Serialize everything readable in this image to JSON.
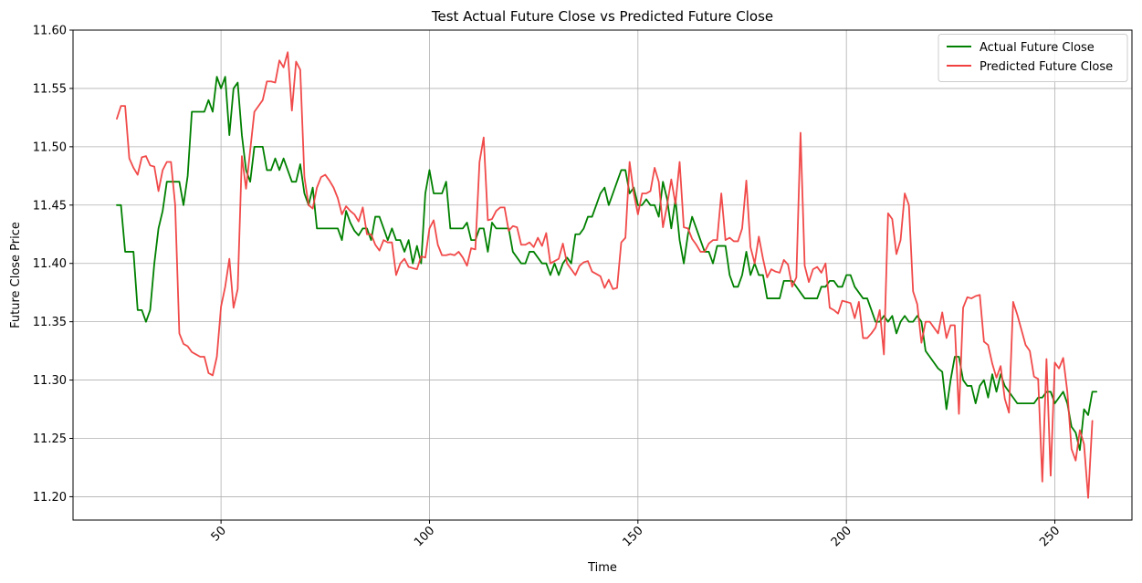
{
  "chart_data": {
    "type": "line",
    "title": "Test Actual Future Close vs Predicted Future Close",
    "xlabel": "Time",
    "ylabel": "Future Close Price",
    "xlim": [
      14.5,
      268.5
    ],
    "ylim": [
      11.18,
      11.6
    ],
    "x_ticks": [
      50,
      100,
      150,
      200,
      250
    ],
    "y_ticks": [
      11.2,
      11.25,
      11.3,
      11.35,
      11.4,
      11.45,
      11.5,
      11.55,
      11.6
    ],
    "x_tick_labels": [
      "50",
      "100",
      "150",
      "200",
      "250"
    ],
    "y_tick_labels": [
      "11.20",
      "11.25",
      "11.30",
      "11.35",
      "11.40",
      "11.45",
      "11.50",
      "11.55",
      "11.60"
    ],
    "grid": true,
    "legend_position": "top-right",
    "series": [
      {
        "name": "Actual Future Close",
        "color": "#008000",
        "x_start": 25,
        "values": [
          11.45,
          11.45,
          11.41,
          11.41,
          11.41,
          11.36,
          11.36,
          11.35,
          11.36,
          11.4,
          11.43,
          11.445,
          11.47,
          11.47,
          11.47,
          11.47,
          11.45,
          11.475,
          11.53,
          11.53,
          11.53,
          11.53,
          11.54,
          11.53,
          11.56,
          11.55,
          11.56,
          11.51,
          11.55,
          11.555,
          11.51,
          11.48,
          11.47,
          11.5,
          11.5,
          11.5,
          11.48,
          11.48,
          11.49,
          11.48,
          11.49,
          11.48,
          11.47,
          11.47,
          11.485,
          11.46,
          11.45,
          11.465,
          11.43,
          11.43,
          11.43,
          11.43,
          11.43,
          11.43,
          11.42,
          11.445,
          11.435,
          11.428,
          11.424,
          11.43,
          11.43,
          11.42,
          11.44,
          11.44,
          11.43,
          11.42,
          11.43,
          11.42,
          11.42,
          11.41,
          11.42,
          11.4,
          11.415,
          11.4,
          11.46,
          11.48,
          11.46,
          11.46,
          11.46,
          11.47,
          11.43,
          11.43,
          11.43,
          11.43,
          11.435,
          11.42,
          11.42,
          11.43,
          11.43,
          11.41,
          11.435,
          11.43,
          11.43,
          11.43,
          11.43,
          11.41,
          11.405,
          11.4,
          11.4,
          11.41,
          11.41,
          11.405,
          11.4,
          11.4,
          11.39,
          11.4,
          11.39,
          11.4,
          11.405,
          11.4,
          11.425,
          11.425,
          11.43,
          11.44,
          11.44,
          11.45,
          11.46,
          11.465,
          11.45,
          11.46,
          11.47,
          11.48,
          11.48,
          11.46,
          11.465,
          11.45,
          11.45,
          11.455,
          11.45,
          11.45,
          11.44,
          11.47,
          11.455,
          11.43,
          11.455,
          11.42,
          11.4,
          11.425,
          11.44,
          11.43,
          11.42,
          11.41,
          11.41,
          11.4,
          11.415,
          11.415,
          11.415,
          11.39,
          11.38,
          11.38,
          11.39,
          11.41,
          11.39,
          11.4,
          11.39,
          11.39,
          11.37,
          11.37,
          11.37,
          11.37,
          11.385,
          11.385,
          11.385,
          11.38,
          11.375,
          11.37,
          11.37,
          11.37,
          11.37,
          11.38,
          11.38,
          11.385,
          11.385,
          11.38,
          11.38,
          11.39,
          11.39,
          11.38,
          11.375,
          11.37,
          11.37,
          11.36,
          11.35,
          11.35,
          11.355,
          11.35,
          11.355,
          11.34,
          11.35,
          11.355,
          11.35,
          11.35,
          11.355,
          11.35,
          11.325,
          11.32,
          11.315,
          11.31,
          11.307,
          11.275,
          11.3,
          11.32,
          11.32,
          11.3,
          11.295,
          11.295,
          11.28,
          11.295,
          11.3,
          11.285,
          11.305,
          11.29,
          11.305,
          11.295,
          11.29,
          11.285,
          11.28,
          11.28,
          11.28,
          11.28,
          11.28,
          11.285,
          11.285,
          11.29,
          11.29,
          11.28,
          11.285,
          11.29,
          11.28,
          11.26,
          11.255,
          11.24,
          11.275,
          11.27,
          11.29,
          11.29
        ]
      },
      {
        "name": "Predicted Future Close",
        "color": "#f04040",
        "x_start": 25,
        "values": [
          11.524,
          11.535,
          11.535,
          11.49,
          11.482,
          11.476,
          11.491,
          11.492,
          11.484,
          11.483,
          11.462,
          11.48,
          11.487,
          11.487,
          11.45,
          11.34,
          11.331,
          11.329,
          11.324,
          11.322,
          11.32,
          11.32,
          11.306,
          11.304,
          11.32,
          11.363,
          11.38,
          11.404,
          11.362,
          11.378,
          11.492,
          11.464,
          11.497,
          11.53,
          11.535,
          11.54,
          11.556,
          11.556,
          11.555,
          11.574,
          11.568,
          11.581,
          11.531,
          11.573,
          11.566,
          11.474,
          11.45,
          11.447,
          11.465,
          11.474,
          11.476,
          11.471,
          11.465,
          11.456,
          11.442,
          11.449,
          11.445,
          11.442,
          11.436,
          11.448,
          11.425,
          11.425,
          11.416,
          11.411,
          11.42,
          11.418,
          11.418,
          11.39,
          11.4,
          11.404,
          11.397,
          11.396,
          11.395,
          11.406,
          11.405,
          11.43,
          11.437,
          11.416,
          11.407,
          11.407,
          11.408,
          11.407,
          11.41,
          11.405,
          11.398,
          11.413,
          11.412,
          11.487,
          11.508,
          11.437,
          11.438,
          11.445,
          11.448,
          11.448,
          11.428,
          11.432,
          11.431,
          11.416,
          11.416,
          11.418,
          11.414,
          11.422,
          11.415,
          11.426,
          11.4,
          11.402,
          11.404,
          11.417,
          11.4,
          11.395,
          11.39,
          11.398,
          11.401,
          11.402,
          11.393,
          11.391,
          11.389,
          11.379,
          11.386,
          11.378,
          11.379,
          11.418,
          11.422,
          11.487,
          11.46,
          11.442,
          11.46,
          11.46,
          11.462,
          11.482,
          11.47,
          11.431,
          11.45,
          11.472,
          11.451,
          11.487,
          11.431,
          11.43,
          11.421,
          11.416,
          11.41,
          11.41,
          11.417,
          11.42,
          11.42,
          11.46,
          11.42,
          11.422,
          11.419,
          11.419,
          11.43,
          11.471,
          11.414,
          11.4,
          11.423,
          11.404,
          11.388,
          11.395,
          11.393,
          11.392,
          11.403,
          11.399,
          11.38,
          11.388,
          11.512,
          11.398,
          11.384,
          11.395,
          11.397,
          11.392,
          11.4,
          11.362,
          11.36,
          11.357,
          11.368,
          11.367,
          11.366,
          11.353,
          11.367,
          11.336,
          11.336,
          11.34,
          11.345,
          11.36,
          11.322,
          11.443,
          11.438,
          11.408,
          11.42,
          11.46,
          11.45,
          11.376,
          11.365,
          11.332,
          11.35,
          11.35,
          11.345,
          11.34,
          11.358,
          11.336,
          11.347,
          11.347,
          11.271,
          11.362,
          11.371,
          11.37,
          11.372,
          11.373,
          11.333,
          11.33,
          11.314,
          11.302,
          11.312,
          11.284,
          11.272,
          11.367,
          11.356,
          11.343,
          11.33,
          11.325,
          11.303,
          11.301,
          11.213,
          11.318,
          11.218,
          11.315,
          11.31,
          11.319,
          11.29,
          11.241,
          11.231,
          11.257,
          11.245,
          11.199,
          11.265
        ]
      }
    ]
  }
}
